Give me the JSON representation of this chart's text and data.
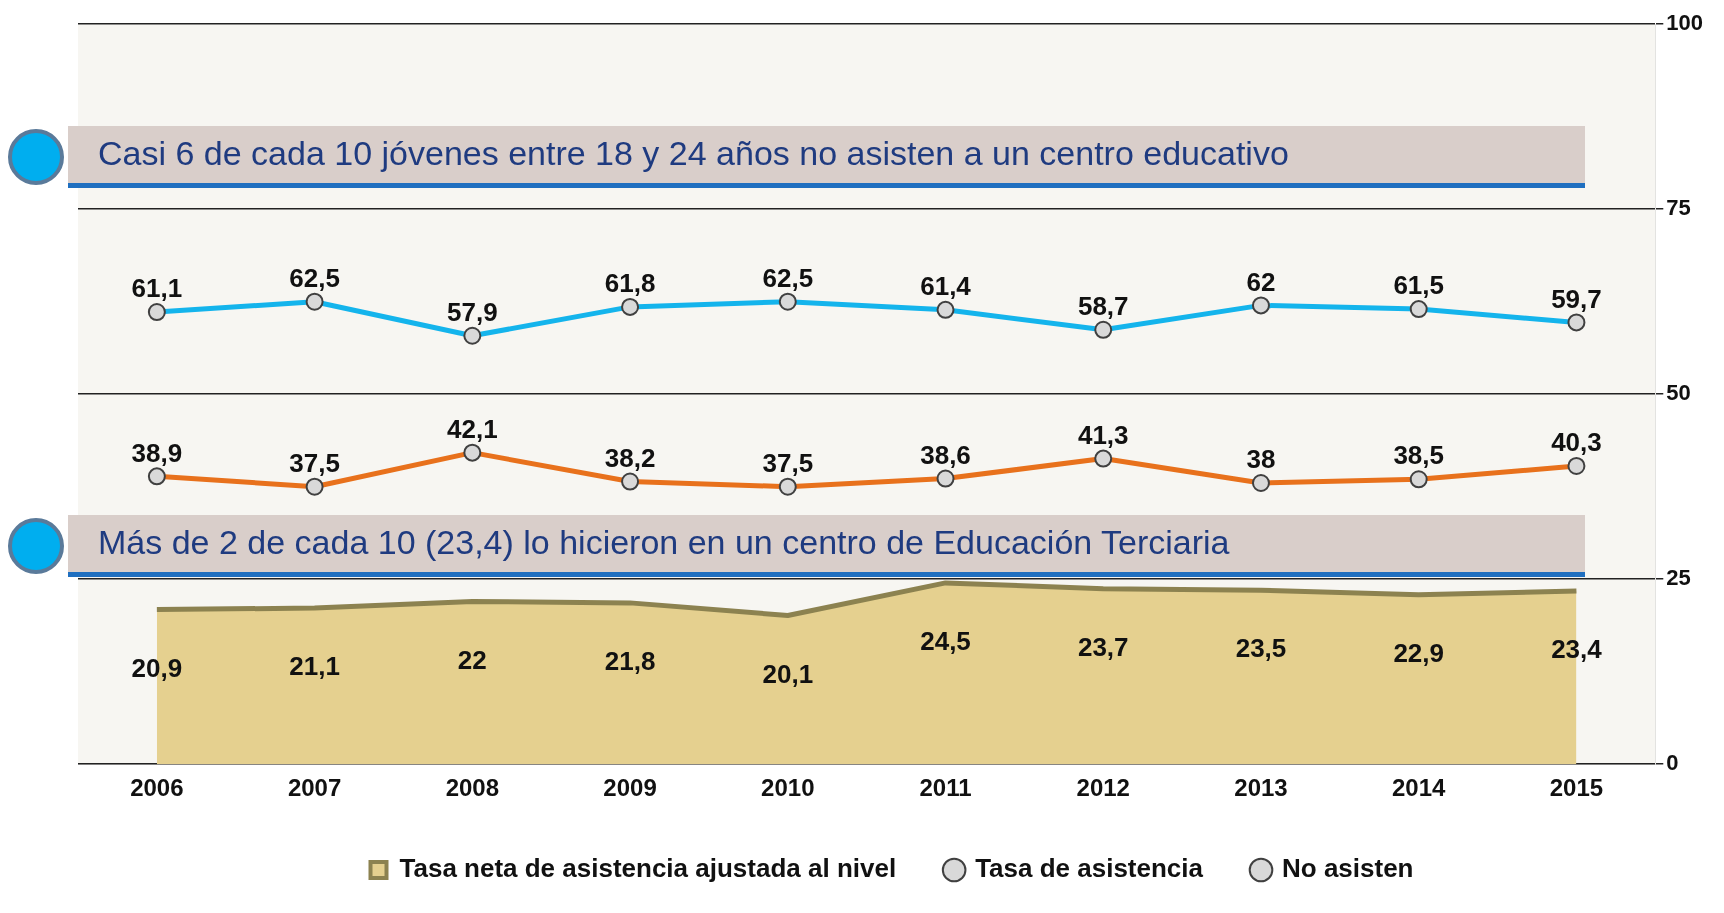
{
  "chart_data": {
    "type": "line",
    "categories": [
      "2006",
      "2007",
      "2008",
      "2009",
      "2010",
      "2011",
      "2012",
      "2013",
      "2014",
      "2015"
    ],
    "series": [
      {
        "name": "Tasa neta de asistencia ajustada al nivel",
        "type": "area",
        "marker": "none",
        "color": "#8c8250",
        "values": [
          20.9,
          21.1,
          22,
          21.8,
          20.1,
          24.5,
          23.7,
          23.5,
          22.9,
          23.4
        ],
        "value_labels": [
          "20,9",
          "21,1",
          "22",
          "21,8",
          "20,1",
          "24,5",
          "23,7",
          "23,5",
          "22,9",
          "23,4"
        ]
      },
      {
        "name": "Tasa de asistencia",
        "color": "#e8711c",
        "values": [
          38.9,
          37.5,
          42.1,
          38.2,
          37.5,
          38.6,
          41.3,
          38,
          38.5,
          40.3
        ],
        "value_labels": [
          "38,9",
          "37,5",
          "42,1",
          "38,2",
          "37,5",
          "38,6",
          "41,3",
          "38",
          "38,5",
          "40,3"
        ]
      },
      {
        "name": "No asisten",
        "color": "#14b4ec",
        "values": [
          61.1,
          62.5,
          57.9,
          61.8,
          62.5,
          61.4,
          58.7,
          62,
          61.5,
          59.7
        ],
        "value_labels": [
          "61,1",
          "62,5",
          "57,9",
          "61,8",
          "62,5",
          "61,4",
          "58,7",
          "62",
          "61,5",
          "59,7"
        ]
      }
    ],
    "ylim": [
      0,
      100
    ],
    "yticks": [
      0,
      25,
      50,
      75,
      100
    ],
    "grid": "y",
    "legend": "bottom",
    "marker": "circle",
    "annotations": [
      "Casi 6 de cada 10 jóvenes entre 18 y 24 años no asisten a un centro educativo",
      "Más de 2 de cada 10 (23,4) lo hicieron en un centro de Educación Terciaria"
    ]
  }
}
